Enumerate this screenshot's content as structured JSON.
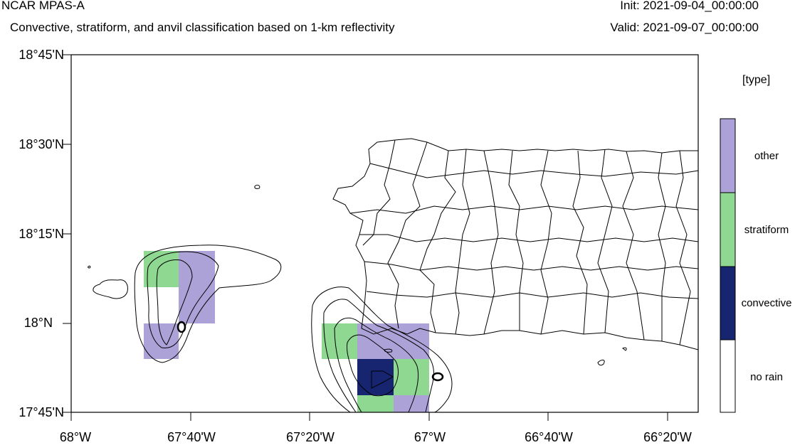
{
  "header": {
    "model": "NCAR MPAS-A",
    "subtitle": "Convective, stratiform, and anvil classification based on 1-km reflectivity",
    "init": "Init: 2021-09-04_00:00:00",
    "valid": "Valid: 2021-09-07_00:00:00"
  },
  "axes": {
    "lat_labels": [
      "18°45'N",
      "18°30'N",
      "18°15'N",
      "18°N",
      "17°45'N"
    ],
    "lon_labels": [
      "68°W",
      "67°40'W",
      "67°20'W",
      "67°W",
      "66°40'W",
      "66°20'W"
    ]
  },
  "legend": {
    "title": "[type]",
    "entries": [
      {
        "label": "other",
        "color": "#ada2d8"
      },
      {
        "label": "stratiform",
        "color": "#8fd892"
      },
      {
        "label": "convective",
        "color": "#172570"
      },
      {
        "label": "no rain",
        "color": "#ffffff"
      }
    ]
  },
  "colors": {
    "other": "#ada2d8",
    "stratiform": "#8fd892",
    "convective": "#172570"
  }
}
